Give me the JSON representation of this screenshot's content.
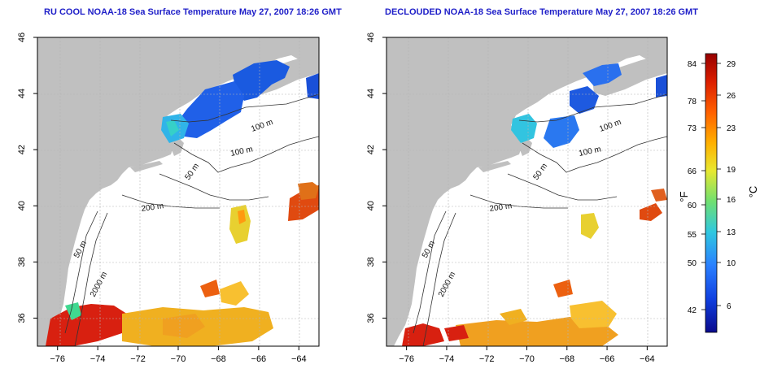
{
  "panels": [
    {
      "title": "RU COOL NOAA-18 Sea Surface Temperature May 27, 2007 18:26 GMT",
      "variant": "cool"
    },
    {
      "title": "DECLOUDED NOAA-18 Sea Surface Temperature May 27, 2007 18:26 GMT",
      "variant": "declouded"
    }
  ],
  "map": {
    "lon_range": [
      -77,
      -63
    ],
    "lat_range": [
      35,
      46
    ],
    "x_ticks": [
      -76,
      -74,
      -72,
      -70,
      -68,
      -66,
      -64
    ],
    "y_ticks": [
      36,
      38,
      40,
      42,
      44,
      46
    ],
    "contour_labels": [
      "100 m",
      "100 m",
      "50 m",
      "200 m",
      "50 m",
      "2000 m"
    ],
    "land_color": "#c0c0c0",
    "grid": true
  },
  "colorbar": {
    "fahrenheit_label": "°F",
    "celsius_label": "°C",
    "fahrenheit_ticks": [
      "84",
      "78",
      "73",
      "66",
      "60",
      "55",
      "50",
      "42"
    ],
    "celsius_ticks": [
      "29",
      "26",
      "23",
      "19",
      "16",
      "13",
      "10",
      "6"
    ],
    "colors": [
      "#0a0a8c",
      "#1040e0",
      "#2a80ff",
      "#30c8e0",
      "#70e070",
      "#e8e830",
      "#ffb000",
      "#ff6000",
      "#dc1e00",
      "#960000"
    ]
  }
}
